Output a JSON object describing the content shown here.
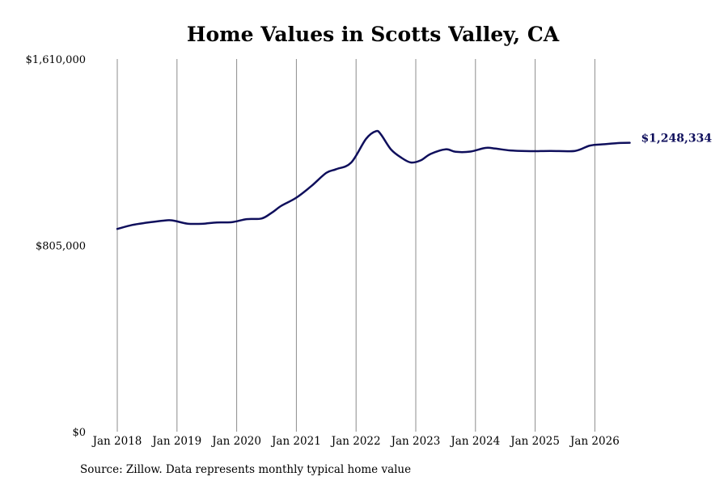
{
  "chart_data": {
    "type": "line",
    "title": "Home Values in Scotts Valley, CA",
    "xlabel": "",
    "ylabel": "",
    "ylim": [
      0,
      1610000
    ],
    "yticks": [
      0,
      805000,
      1610000
    ],
    "ytick_labels": [
      "$0",
      "$805,000",
      "$1,610,000"
    ],
    "xticks": [
      "2018-01",
      "2019-01",
      "2020-01",
      "2021-01",
      "2022-01",
      "2023-01",
      "2024-01",
      "2025-01",
      "2026-01"
    ],
    "xtick_labels": [
      "Jan 2018",
      "Jan 2019",
      "Jan 2020",
      "Jan 2021",
      "Jan 2022",
      "Jan 2023",
      "Jan 2024",
      "Jan 2025",
      "Jan 2026"
    ],
    "grid": "vertical",
    "line_color": "#0f0f5c",
    "series": [
      {
        "x": [
          "2018-01",
          "2018-04",
          "2018-07",
          "2018-10",
          "2018-12",
          "2019-03",
          "2019-06",
          "2019-09",
          "2019-12",
          "2020-03",
          "2020-06",
          "2020-08",
          "2020-10",
          "2021-01",
          "2021-04",
          "2021-07",
          "2021-09",
          "2021-12",
          "2022-03",
          "2022-05",
          "2022-06",
          "2022-08",
          "2022-10",
          "2022-12",
          "2023-02",
          "2023-04",
          "2023-07",
          "2023-09",
          "2023-12",
          "2024-03",
          "2024-05",
          "2024-08",
          "2024-12",
          "2025-04",
          "2025-09",
          "2025-12",
          "2026-03",
          "2026-06",
          "2026-08"
        ],
        "values": [
          876000,
          893000,
          903000,
          911000,
          913000,
          899000,
          898000,
          904000,
          905000,
          918000,
          921000,
          945000,
          976000,
          1011000,
          1061000,
          1118000,
          1134000,
          1162000,
          1265000,
          1298000,
          1284000,
          1220000,
          1185000,
          1163000,
          1172000,
          1200000,
          1220000,
          1209000,
          1210000,
          1226000,
          1223000,
          1215000,
          1212000,
          1213000,
          1213000,
          1236000,
          1242000,
          1247000,
          1248334
        ]
      }
    ],
    "end_label": "$1,248,334",
    "source": "Source: Zillow. Data represents monthly typical home value"
  }
}
